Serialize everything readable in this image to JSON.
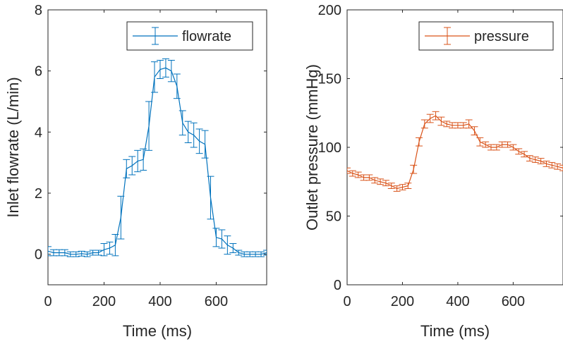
{
  "chart_data": [
    {
      "type": "line",
      "xlabel": "Time (ms)",
      "ylabel": "Inlet flowrate (L/min)",
      "xlim": [
        0,
        780
      ],
      "ylim": [
        -1,
        8
      ],
      "xticks": [
        "0",
        "200",
        "400",
        "600"
      ],
      "yticks": [
        "0",
        "2",
        "4",
        "6",
        "8"
      ],
      "grid": false,
      "legend_position": "top-right",
      "color": "#0072BD",
      "series": [
        {
          "name": "flowrate",
          "x": [
            0,
            20,
            40,
            60,
            80,
            100,
            120,
            140,
            160,
            180,
            200,
            220,
            240,
            260,
            280,
            300,
            320,
            340,
            360,
            380,
            400,
            420,
            440,
            460,
            480,
            500,
            520,
            540,
            560,
            580,
            600,
            620,
            640,
            660,
            680,
            700,
            720,
            740,
            760,
            780
          ],
          "y": [
            0.1,
            0.05,
            0.05,
            0.05,
            0.0,
            0.0,
            0.02,
            0.0,
            0.05,
            0.05,
            0.15,
            0.2,
            0.3,
            1.2,
            2.8,
            2.9,
            3.05,
            3.1,
            4.2,
            5.8,
            6.05,
            6.1,
            6.0,
            5.5,
            4.3,
            4.0,
            3.9,
            3.7,
            3.6,
            1.85,
            0.55,
            0.5,
            0.3,
            0.2,
            0.05,
            0.0,
            0.0,
            0.0,
            0.0,
            0.05
          ],
          "err": [
            0.15,
            0.1,
            0.1,
            0.1,
            0.08,
            0.08,
            0.08,
            0.08,
            0.08,
            0.08,
            0.2,
            0.2,
            0.35,
            0.7,
            0.3,
            0.3,
            0.35,
            0.35,
            0.8,
            0.5,
            0.3,
            0.3,
            0.35,
            0.4,
            0.4,
            0.35,
            0.4,
            0.4,
            0.45,
            0.7,
            0.3,
            0.3,
            0.3,
            0.15,
            0.08,
            0.08,
            0.08,
            0.08,
            0.08,
            0.08
          ]
        }
      ]
    },
    {
      "type": "line",
      "xlabel": "Time (ms)",
      "ylabel": "Outlet pressure (mmHg)",
      "xlim": [
        0,
        780
      ],
      "ylim": [
        0,
        200
      ],
      "xticks": [
        "0",
        "200",
        "400",
        "600"
      ],
      "yticks": [
        "0",
        "50",
        "100",
        "150",
        "200"
      ],
      "grid": false,
      "legend_position": "top-right",
      "color": "#D95319",
      "series": [
        {
          "name": "pressure",
          "x": [
            0,
            20,
            40,
            60,
            80,
            100,
            120,
            140,
            160,
            180,
            200,
            220,
            240,
            260,
            280,
            300,
            320,
            340,
            360,
            380,
            400,
            420,
            440,
            460,
            480,
            500,
            520,
            540,
            560,
            580,
            600,
            620,
            640,
            660,
            680,
            700,
            720,
            740,
            760,
            780
          ],
          "y": [
            83,
            81,
            80,
            78,
            78,
            76,
            75,
            74,
            72,
            70,
            71,
            72,
            84,
            104,
            117,
            121,
            123,
            119,
            117,
            116,
            116,
            116,
            117,
            112,
            104,
            102,
            100,
            100,
            102,
            102,
            100,
            97,
            95,
            92,
            91,
            90,
            88,
            87,
            86,
            85
          ],
          "err": [
            2,
            2,
            2,
            2,
            2,
            2,
            2,
            2,
            2,
            2,
            2,
            2,
            3,
            3,
            3,
            3,
            3,
            3,
            2,
            2,
            2,
            2,
            3,
            3,
            3,
            2,
            2,
            2,
            2,
            2,
            2,
            2,
            2,
            2,
            2,
            2,
            2,
            2,
            2,
            2
          ]
        }
      ]
    }
  ]
}
